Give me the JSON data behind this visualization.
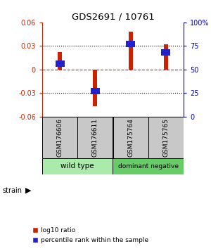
{
  "title": "GDS2691 / 10761",
  "samples": [
    "GSM176606",
    "GSM176611",
    "GSM175764",
    "GSM175765"
  ],
  "log10_ratio": [
    0.022,
    -0.047,
    0.048,
    0.032
  ],
  "percentile_rank": [
    56,
    27,
    77,
    68
  ],
  "ylim_left": [
    -0.06,
    0.06
  ],
  "ylim_right": [
    0,
    100
  ],
  "yticks_left": [
    -0.06,
    -0.03,
    0,
    0.03,
    0.06
  ],
  "yticks_right": [
    0,
    25,
    50,
    75,
    100
  ],
  "groups": [
    {
      "name": "wild type",
      "indices": [
        0,
        1
      ],
      "color": "#aaeaaa"
    },
    {
      "name": "dominant negative",
      "indices": [
        2,
        3
      ],
      "color": "#66cc66"
    }
  ],
  "bar_color": "#cc2200",
  "percentile_color": "#2222cc",
  "bar_width": 0.12,
  "left_axis_color": "#cc2200",
  "right_axis_color": "#0000cc",
  "zero_line_color": "#cc2200",
  "background_color": "#ffffff",
  "plot_bg_color": "#ffffff",
  "label_box_color": "#c8c8c8"
}
